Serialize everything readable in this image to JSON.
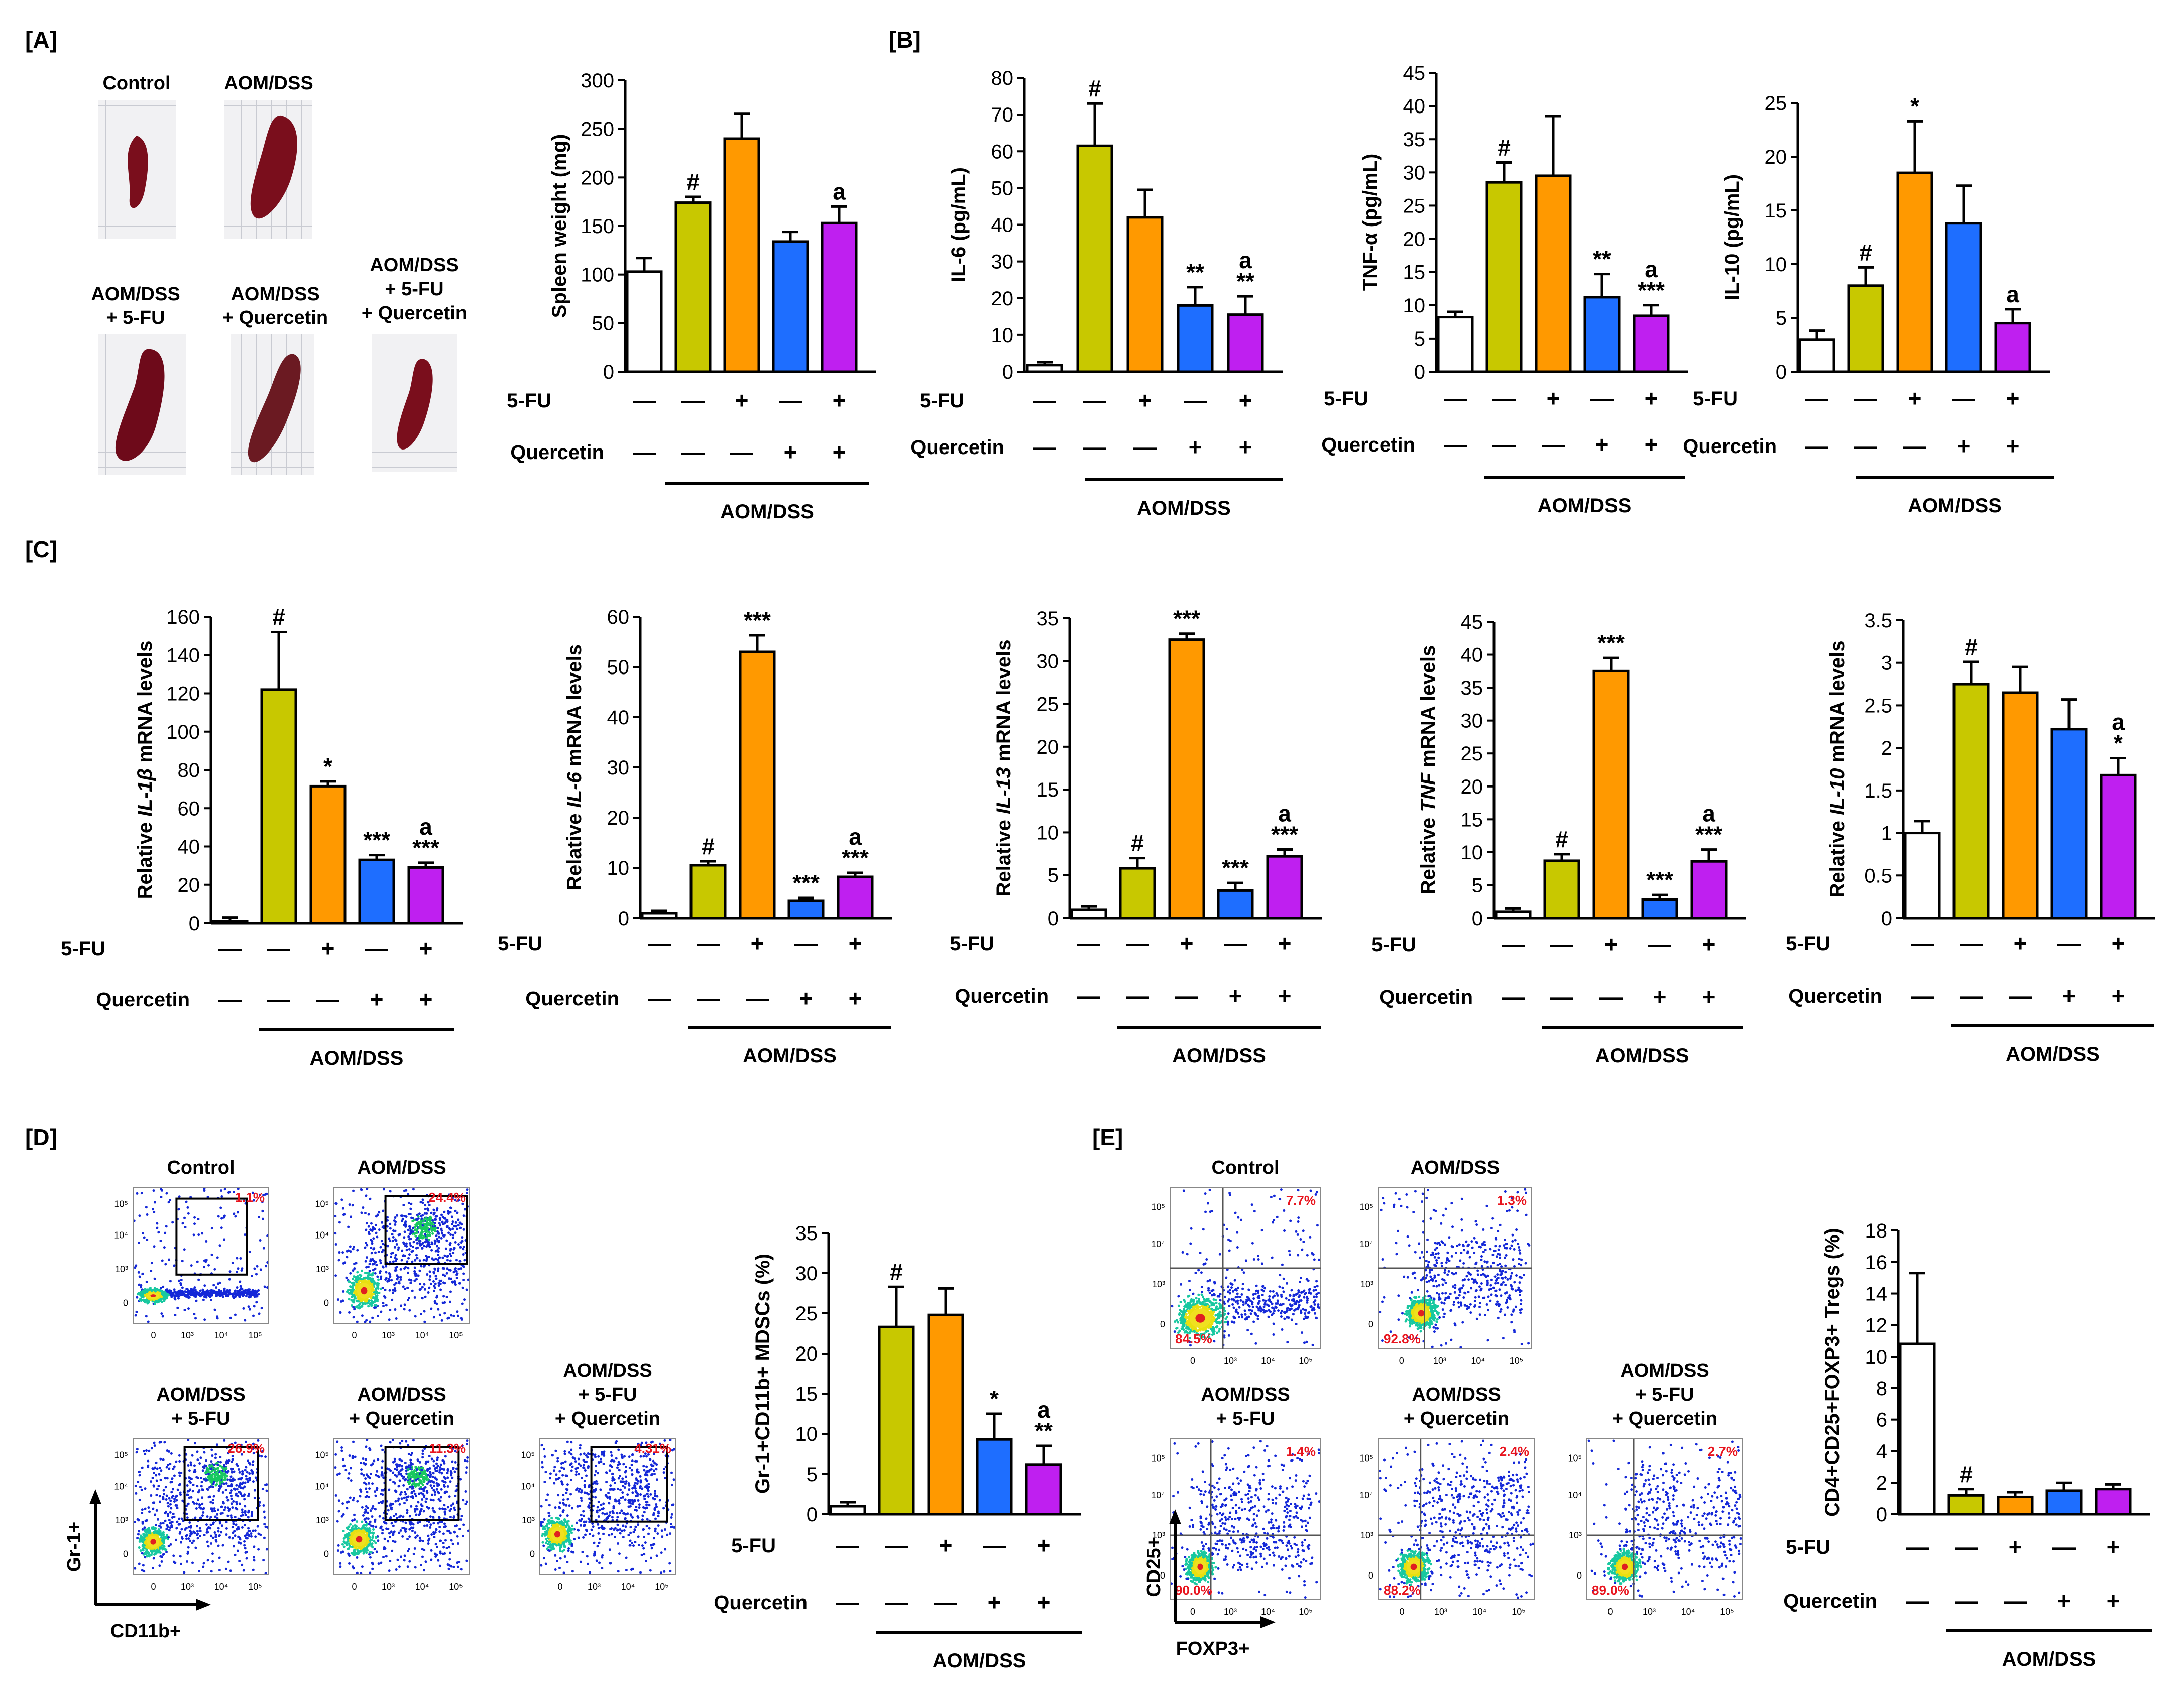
{
  "panel_labels": {
    "A": "[A]",
    "B": "[B]",
    "C": "[C]",
    "D": "[D]",
    "E": "[E]"
  },
  "colors": {
    "control": "#ffffff",
    "aomdss": "#c8c800",
    "fu": "#ff9900",
    "quercetin": "#1e6eff",
    "combo": "#bf1ff0"
  },
  "group_labels": {
    "control": "Control",
    "aomdss": "AOM/DSS",
    "aomdss_fu": [
      "AOM/DSS",
      "+ 5-FU"
    ],
    "aomdss_q": [
      "AOM/DSS",
      "+ Quercetin"
    ],
    "aomdss_fu_q": [
      "AOM/DSS",
      "+ 5-FU",
      "+ Quercetin"
    ]
  },
  "treatment": {
    "row1_label": "5-FU",
    "row2_label": "Quercetin",
    "row1": [
      "—",
      "—",
      "+",
      "—",
      "+"
    ],
    "row2": [
      "—",
      "—",
      "—",
      "+",
      "+"
    ],
    "bracket": "AOM/DSS"
  },
  "flow_axes": {
    "d_y": "Gr-1+",
    "d_x": "CD11b+",
    "e_y": "CD25+",
    "e_x": "FOXP3+"
  },
  "flow_ticks": {
    "x": [
      "0",
      "10³",
      "10⁴",
      "10⁵"
    ],
    "y": [
      "0",
      "10³",
      "10⁴",
      "10⁵"
    ]
  },
  "flow_d_percents": [
    "1.1%",
    "24.4%",
    "26.9%",
    "11.3%",
    "4.31%"
  ],
  "flow_e_percents": [
    {
      "ur": "7.7%",
      "ll": "84.5%"
    },
    {
      "ur": "1.3%",
      "ll": "92.8%"
    },
    {
      "ur": "1.4%",
      "ll": "90.0%"
    },
    {
      "ur": "2.4%",
      "ll": "88.2%"
    },
    {
      "ur": "2.7%",
      "ll": "89.0%"
    }
  ],
  "chart_data": [
    {
      "id": "spleen",
      "type": "bar",
      "title": "",
      "ylabel": "Spleen weight (mg)",
      "ylim": [
        0,
        300
      ],
      "ticks": [
        0,
        50,
        100,
        150,
        200,
        250,
        300
      ],
      "categories": [
        "Control",
        "AOM/DSS",
        "AOM/DSS + 5-FU",
        "AOM/DSS + Quercetin",
        "AOM/DSS + 5-FU + Quercetin"
      ],
      "values": [
        103,
        174,
        240,
        134,
        153
      ],
      "errors": [
        14,
        6,
        26,
        10,
        17
      ],
      "annotations": [
        "",
        "#",
        "",
        "",
        "a"
      ]
    },
    {
      "id": "il6_protein",
      "type": "bar",
      "ylabel": "IL-6 (pg/mL)",
      "ylim": [
        0,
        80
      ],
      "ticks": [
        0,
        10,
        20,
        30,
        40,
        50,
        60,
        70,
        80
      ],
      "categories": [
        "Control",
        "AOM/DSS",
        "AOM/DSS + 5-FU",
        "AOM/DSS + Quercetin",
        "AOM/DSS + 5-FU + Quercetin"
      ],
      "values": [
        1.8,
        61.5,
        42,
        18,
        15.5
      ],
      "errors": [
        0.8,
        11.5,
        7.5,
        5,
        5
      ],
      "annotations": [
        "",
        "#",
        "",
        "**",
        "a\n**"
      ]
    },
    {
      "id": "tnf_protein",
      "type": "bar",
      "ylabel": "TNF-α (pg/mL)",
      "ylim": [
        0,
        45
      ],
      "ticks": [
        0,
        5,
        10,
        15,
        20,
        25,
        30,
        35,
        40,
        45
      ],
      "categories": [
        "Control",
        "AOM/DSS",
        "AOM/DSS + 5-FU",
        "AOM/DSS + Quercetin",
        "AOM/DSS + 5-FU + Quercetin"
      ],
      "values": [
        8.2,
        28.5,
        29.5,
        11.2,
        8.4
      ],
      "errors": [
        0.8,
        3,
        9,
        3.5,
        1.6
      ],
      "annotations": [
        "",
        "#",
        "",
        "**",
        "a\n***"
      ]
    },
    {
      "id": "il10_protein",
      "type": "bar",
      "ylabel": "IL-10 (pg/mL)",
      "ylim": [
        0,
        25
      ],
      "ticks": [
        0,
        5,
        10,
        15,
        20,
        25
      ],
      "categories": [
        "Control",
        "AOM/DSS",
        "AOM/DSS + 5-FU",
        "AOM/DSS + Quercetin",
        "AOM/DSS + 5-FU + Quercetin"
      ],
      "values": [
        3,
        8,
        18.5,
        13.8,
        4.5
      ],
      "errors": [
        0.8,
        1.7,
        4.8,
        3.5,
        1.3
      ],
      "annotations": [
        "",
        "#",
        "*",
        "",
        "a"
      ]
    },
    {
      "id": "il1b_mrna",
      "type": "bar",
      "ylabel_pre": "Relative ",
      "ylabel_gene": "IL-1β",
      "ylabel_post": " mRNA levels",
      "ylim": [
        0,
        160
      ],
      "ticks": [
        0,
        20,
        40,
        60,
        80,
        100,
        120,
        140,
        160
      ],
      "categories": [
        "Control",
        "AOM/DSS",
        "AOM/DSS + 5-FU",
        "AOM/DSS + Quercetin",
        "AOM/DSS + 5-FU + Quercetin"
      ],
      "values": [
        1,
        122,
        71.5,
        33,
        29
      ],
      "errors": [
        2,
        30,
        2.5,
        2.5,
        2.5
      ],
      "annotations": [
        "",
        "#",
        "*",
        "***",
        "a\n***"
      ]
    },
    {
      "id": "il6_mrna",
      "type": "bar",
      "ylabel_pre": "Relative ",
      "ylabel_gene": "IL-6",
      "ylabel_post": " mRNA levels",
      "ylim": [
        0,
        60
      ],
      "ticks": [
        0,
        10,
        20,
        30,
        40,
        50,
        60
      ],
      "categories": [
        "Control",
        "AOM/DSS",
        "AOM/DSS + 5-FU",
        "AOM/DSS + Quercetin",
        "AOM/DSS + 5-FU + Quercetin"
      ],
      "values": [
        1,
        10.5,
        53,
        3.5,
        8.2
      ],
      "errors": [
        0.5,
        0.8,
        3.3,
        0.5,
        0.8
      ],
      "annotations": [
        "",
        "#",
        "***",
        "***",
        "a\n***"
      ]
    },
    {
      "id": "il13_mrna",
      "type": "bar",
      "ylabel_pre": "Relative ",
      "ylabel_gene": "IL-13",
      "ylabel_post": " mRNA levels",
      "ylim": [
        0,
        35
      ],
      "ticks": [
        0,
        5,
        10,
        15,
        20,
        25,
        30,
        35
      ],
      "categories": [
        "Control",
        "AOM/DSS",
        "AOM/DSS + 5-FU",
        "AOM/DSS + Quercetin",
        "AOM/DSS + 5-FU + Quercetin"
      ],
      "values": [
        1,
        5.8,
        32.5,
        3.2,
        7.2
      ],
      "errors": [
        0.4,
        1.2,
        0.7,
        0.9,
        0.8
      ],
      "annotations": [
        "",
        "#",
        "***",
        "***",
        "a\n***"
      ]
    },
    {
      "id": "tnf_mrna",
      "type": "bar",
      "ylabel_pre": "Relative ",
      "ylabel_gene": "TNF",
      "ylabel_post": " mRNA levels",
      "ylim": [
        0,
        45
      ],
      "ticks": [
        0,
        5,
        10,
        15,
        20,
        25,
        30,
        35,
        40,
        45
      ],
      "categories": [
        "Control",
        "AOM/DSS",
        "AOM/DSS + 5-FU",
        "AOM/DSS + Quercetin",
        "AOM/DSS + 5-FU + Quercetin"
      ],
      "values": [
        1,
        8.7,
        37.5,
        2.8,
        8.6
      ],
      "errors": [
        0.5,
        1,
        2,
        0.7,
        1.8
      ],
      "annotations": [
        "",
        "#",
        "***",
        "***",
        "a\n***"
      ]
    },
    {
      "id": "il10_mrna",
      "type": "bar",
      "ylabel_pre": "Relative ",
      "ylabel_gene": "IL-10",
      "ylabel_post": " mRNA levels",
      "ylim": [
        0,
        3.5
      ],
      "ticks": [
        0,
        0.5,
        1,
        1.5,
        2,
        2.5,
        3,
        3.5
      ],
      "categories": [
        "Control",
        "AOM/DSS",
        "AOM/DSS + 5-FU",
        "AOM/DSS + Quercetin",
        "AOM/DSS + 5-FU + Quercetin"
      ],
      "values": [
        1,
        2.75,
        2.65,
        2.22,
        1.68
      ],
      "errors": [
        0.14,
        0.26,
        0.3,
        0.35,
        0.2
      ],
      "annotations": [
        "",
        "#",
        "",
        "",
        "a\n*"
      ]
    },
    {
      "id": "mdsc",
      "type": "bar",
      "ylabel": "Gr-1+CD11b+ MDSCs (%)",
      "ylim": [
        0,
        35
      ],
      "ticks": [
        0,
        5,
        10,
        15,
        20,
        25,
        30,
        35
      ],
      "categories": [
        "Control",
        "AOM/DSS",
        "AOM/DSS + 5-FU",
        "AOM/DSS + Quercetin",
        "AOM/DSS + 5-FU + Quercetin"
      ],
      "values": [
        1,
        23.3,
        24.8,
        9.3,
        6.2
      ],
      "errors": [
        0.5,
        5,
        3.3,
        3.2,
        2.3
      ],
      "annotations": [
        "",
        "#",
        "",
        "*",
        "a\n**"
      ]
    },
    {
      "id": "tregs",
      "type": "bar",
      "ylabel": "CD4+CD25+FOXP3+ Tregs (%)",
      "ylim": [
        0,
        18
      ],
      "ticks": [
        0,
        2,
        4,
        6,
        8,
        10,
        12,
        14,
        16,
        18
      ],
      "categories": [
        "Control",
        "AOM/DSS",
        "AOM/DSS + 5-FU",
        "AOM/DSS + Quercetin",
        "AOM/DSS + 5-FU + Quercetin"
      ],
      "values": [
        10.8,
        1.2,
        1.1,
        1.5,
        1.6
      ],
      "errors": [
        4.5,
        0.4,
        0.3,
        0.5,
        0.3
      ],
      "annotations": [
        "",
        "#",
        "",
        "",
        ""
      ]
    }
  ]
}
